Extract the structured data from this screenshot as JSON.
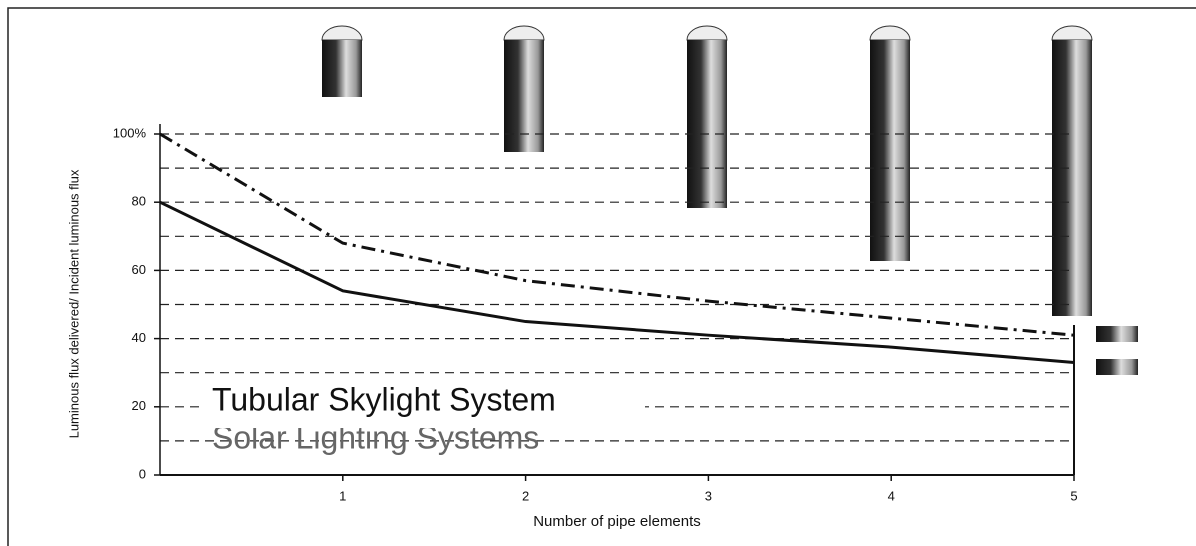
{
  "chart_data": {
    "type": "line",
    "x_label": "Number of pipe elements",
    "y_label": "Luminous flux delivered/ Incident luminous flux",
    "annotations": [
      "Tubular Skylight System",
      "Solar Lighting Systems"
    ],
    "x": [
      0,
      1,
      2,
      3,
      4,
      5
    ],
    "series": [
      {
        "color": "#111111",
        "style": "solid",
        "values": [
          80,
          54,
          45,
          41,
          37.5,
          33
        ]
      },
      {
        "color": "#111111",
        "style": "dashdot",
        "values": [
          100,
          68,
          57,
          51,
          46,
          41
        ]
      }
    ],
    "xlim": [
      0,
      5
    ],
    "xticks": [
      1,
      2,
      3,
      4,
      5
    ],
    "ylim": [
      0,
      100
    ],
    "yticks": [
      0,
      20,
      40,
      60,
      80,
      {
        "value": 100,
        "label": "100%"
      }
    ],
    "yminorticks": [
      10,
      30,
      50,
      70,
      90
    ],
    "grid": true
  }
}
